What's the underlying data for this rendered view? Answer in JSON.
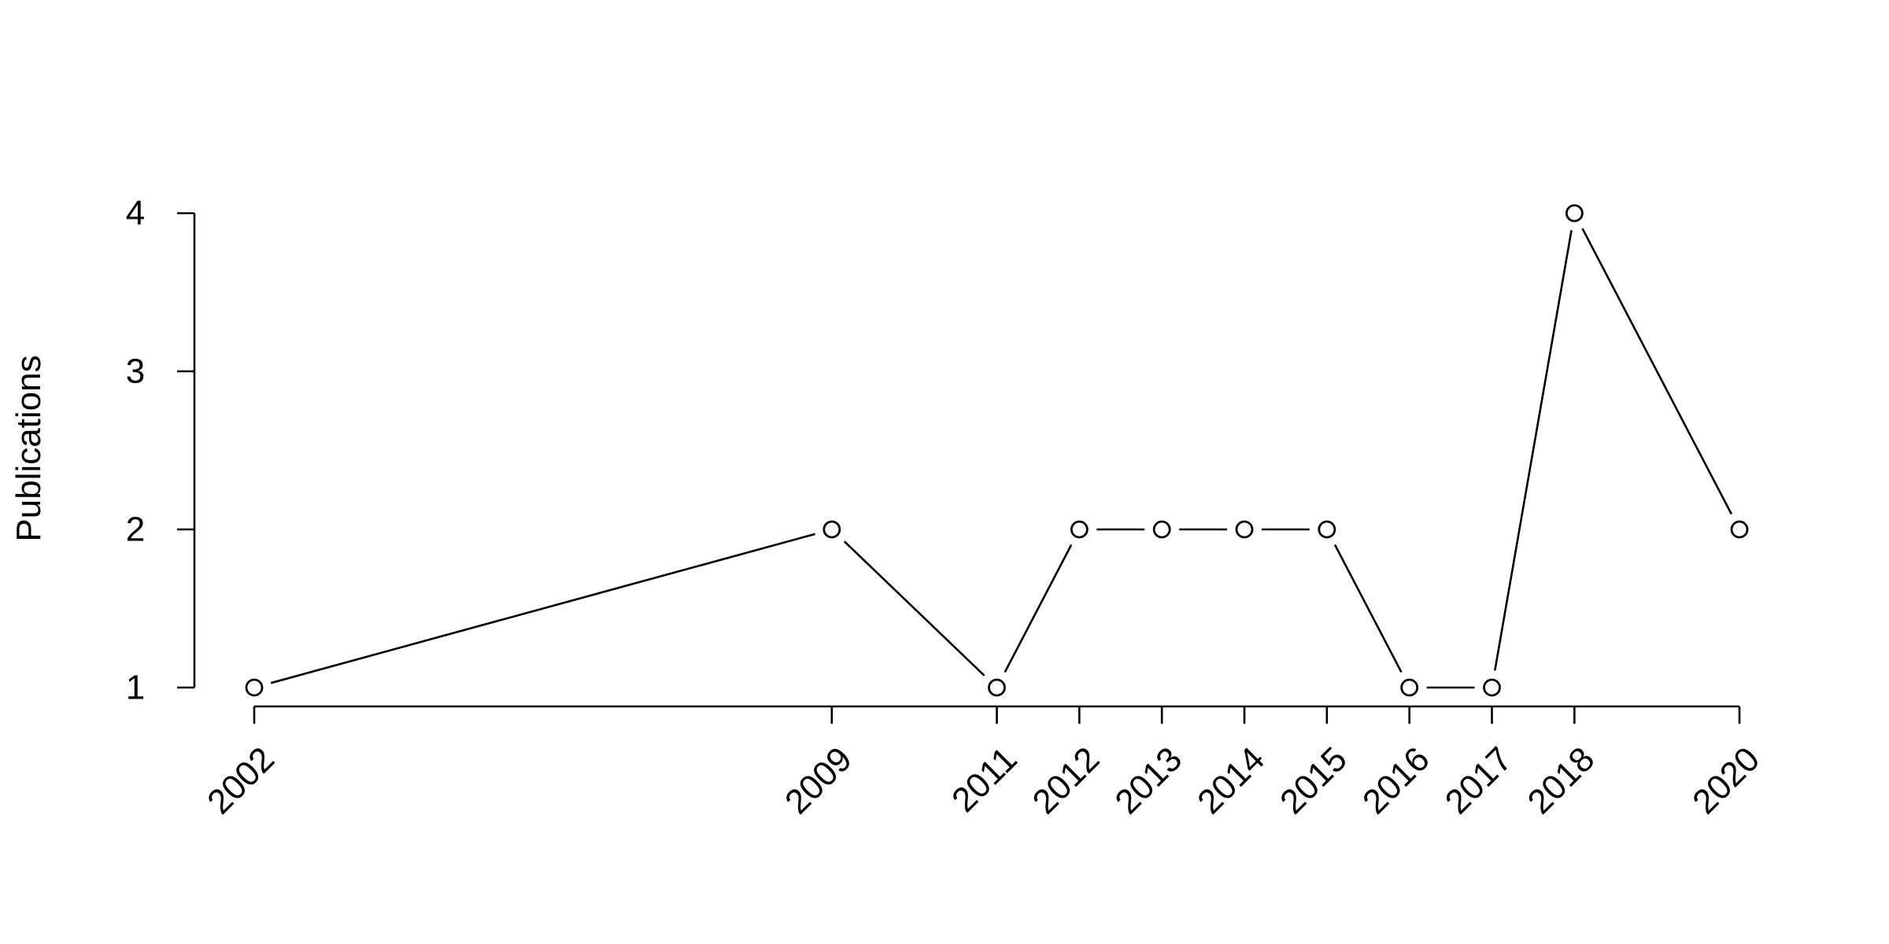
{
  "chart_data": {
    "type": "line",
    "title": "",
    "xlabel": "",
    "ylabel": "Publications",
    "x": [
      2002,
      2009,
      2011,
      2012,
      2013,
      2014,
      2015,
      2016,
      2017,
      2018,
      2020
    ],
    "series": [
      {
        "values": [
          1,
          2,
          1,
          2,
          2,
          2,
          2,
          1,
          1,
          4,
          2
        ]
      }
    ],
    "xlim": [
      2002,
      2020
    ],
    "ylim": [
      1,
      4
    ],
    "yticks": [
      1,
      2,
      3,
      4
    ],
    "x_tick_labels": [
      "2002",
      "2009",
      "2011",
      "2012",
      "2013",
      "2014",
      "2015",
      "2016",
      "2017",
      "2018",
      "2020"
    ],
    "y_tick_labels": [
      "1",
      "2",
      "3",
      "4"
    ],
    "grid": false,
    "marker": "open-circle",
    "line_color": "#000000"
  }
}
